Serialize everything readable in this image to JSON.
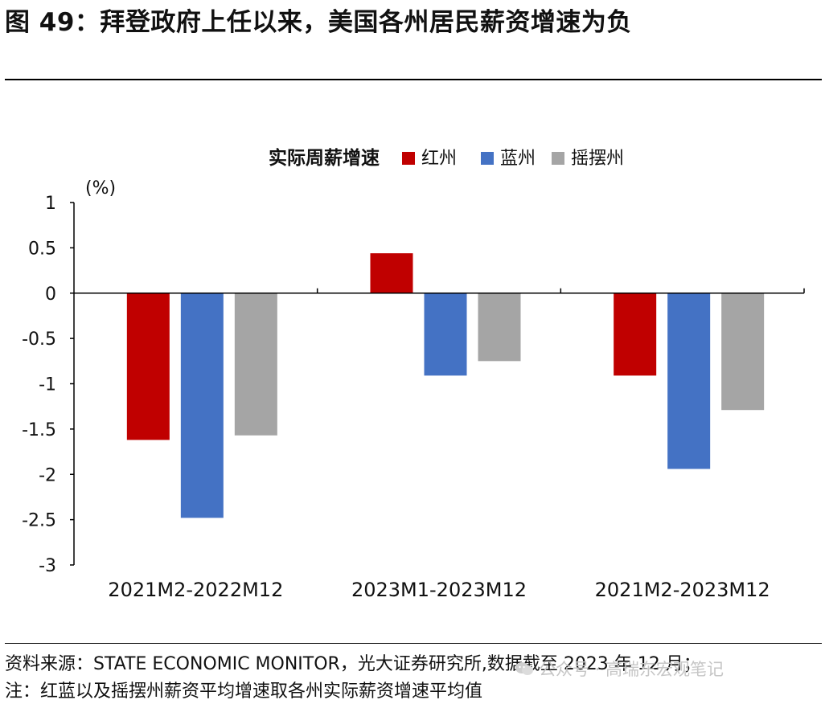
{
  "title": "图 49：拜登政府上任以来，美国各州居民薪资增速为负",
  "footer": {
    "source": "资料来源：STATE ECONOMIC MONITOR，光大证券研究所,数据截至 2023 年 12 月；",
    "note": "注：红蓝以及摇摆州薪资平均增速取各州实际薪资增速平均值"
  },
  "watermark": {
    "text": "公众号 · 高瑞东宏观笔记",
    "icon": "wechat-icon"
  },
  "chart_data": {
    "type": "bar",
    "title": "实际周薪增速",
    "ylabel": "(%)",
    "categories": [
      "2021M2-2022M12",
      "2023M1-2023M12",
      "2021M2-2023M12"
    ],
    "series": [
      {
        "name": "红州",
        "color": "#C00000",
        "values": [
          -1.62,
          0.44,
          -0.91
        ]
      },
      {
        "name": "蓝州",
        "color": "#4472C4",
        "values": [
          -2.48,
          -0.91,
          -1.94
        ]
      },
      {
        "name": "摇摆州",
        "color": "#A5A5A5",
        "values": [
          -1.57,
          -0.75,
          -1.29
        ]
      }
    ],
    "ylim": [
      -3,
      1
    ],
    "yticks": [
      "1",
      "0.5",
      "0",
      "-0.5",
      "-1",
      "-1.5",
      "-2",
      "-2.5",
      "-3"
    ],
    "legend": "top"
  }
}
